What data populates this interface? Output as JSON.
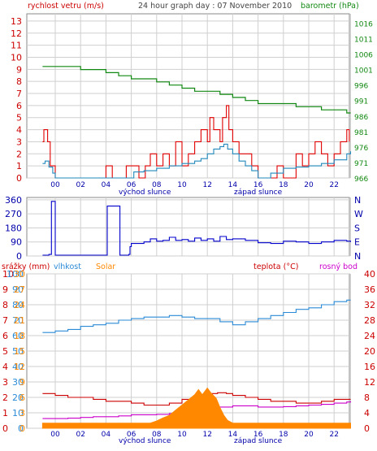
{
  "colors": {
    "wind": "#e00000",
    "gust": "#e00000",
    "wind_avg": "#2288bb",
    "pressure": "#118811",
    "direction": "#0000cc",
    "humidity": "#2a8ad6",
    "solar": "#ff8800",
    "temperature": "#cc0000",
    "dewpoint": "#cc00cc",
    "grid": "#cfcfcf",
    "frame": "#888888"
  },
  "header": {
    "wind_label": "rychlost vetru (m/s)",
    "title": "24 hour graph day : 07 November 2010",
    "pressure_label": "barometr (hPa)"
  },
  "legend": {
    "rain": "srážky (mm)",
    "humidity": "vlhkost",
    "solar": "Solar",
    "temperature": "teplota (°C)",
    "dewpoint": "rosný bod"
  },
  "time_axis": {
    "labels": [
      "00",
      "02",
      "04",
      "06",
      "08",
      "10",
      "12",
      "14",
      "16",
      "18",
      "20",
      "22"
    ],
    "sunrise_label": "východ slunce",
    "sunset_label": "západ slunce"
  },
  "chart_data": [
    {
      "type": "line",
      "title": "24 hour graph day : 07 November 2010",
      "y_left": {
        "label": "rychlost vetru (m/s)",
        "ticks": [
          0,
          1,
          2,
          3,
          4,
          5,
          6,
          7,
          8,
          9,
          10,
          11,
          12,
          13
        ],
        "lim": [
          0,
          13.6
        ]
      },
      "y_right": {
        "label": "barometr (hPa)",
        "ticks": [
          966,
          971,
          976,
          981,
          986,
          991,
          996,
          1001,
          1006,
          1011,
          1016
        ],
        "lim": [
          966,
          1019
        ]
      },
      "series": [
        {
          "key": "gust",
          "axis": "left",
          "points": [
            [
              -1,
              3
            ],
            [
              -0.9,
              4
            ],
            [
              -0.6,
              3
            ],
            [
              -0.4,
              1
            ],
            [
              0,
              0
            ],
            [
              4,
              0
            ],
            [
              4,
              1
            ],
            [
              4.5,
              0
            ],
            [
              5.5,
              0
            ],
            [
              5.6,
              1
            ],
            [
              6.5,
              1
            ],
            [
              6.6,
              0
            ],
            [
              7,
              0
            ],
            [
              7.1,
              1
            ],
            [
              7.5,
              2
            ],
            [
              8,
              1
            ],
            [
              8.5,
              2
            ],
            [
              9,
              1
            ],
            [
              9.5,
              3
            ],
            [
              10,
              1
            ],
            [
              10.5,
              2
            ],
            [
              11,
              3
            ],
            [
              11.5,
              4
            ],
            [
              12,
              3
            ],
            [
              12.2,
              5
            ],
            [
              12.5,
              4
            ],
            [
              13,
              3
            ],
            [
              13.2,
              5
            ],
            [
              13.5,
              6
            ],
            [
              13.7,
              4
            ],
            [
              14,
              3
            ],
            [
              14.5,
              2
            ],
            [
              15,
              2
            ],
            [
              15.5,
              1
            ],
            [
              16,
              0
            ],
            [
              17,
              0
            ],
            [
              17.5,
              1
            ],
            [
              18,
              0
            ],
            [
              19,
              2
            ],
            [
              19.5,
              1
            ],
            [
              20,
              2
            ],
            [
              20.5,
              3
            ],
            [
              21,
              2
            ],
            [
              21.5,
              1
            ],
            [
              22,
              2
            ],
            [
              22.5,
              3
            ],
            [
              23,
              4
            ],
            [
              23.2,
              3
            ]
          ]
        },
        {
          "key": "wind_avg",
          "axis": "left",
          "points": [
            [
              -1,
              1.2
            ],
            [
              -0.8,
              1.4
            ],
            [
              -0.5,
              0.9
            ],
            [
              -0.2,
              0.4
            ],
            [
              0,
              0
            ],
            [
              6,
              0
            ],
            [
              6.2,
              0.5
            ],
            [
              7,
              0.6
            ],
            [
              8,
              0.8
            ],
            [
              9,
              1.0
            ],
            [
              10,
              1.2
            ],
            [
              11,
              1.4
            ],
            [
              11.5,
              1.6
            ],
            [
              12,
              2.0
            ],
            [
              12.5,
              2.4
            ],
            [
              13,
              2.6
            ],
            [
              13.3,
              2.8
            ],
            [
              13.6,
              2.4
            ],
            [
              14,
              2.0
            ],
            [
              14.5,
              1.4
            ],
            [
              15,
              1.0
            ],
            [
              15.5,
              0.6
            ],
            [
              16,
              0
            ],
            [
              17,
              0.4
            ],
            [
              18,
              0.8
            ],
            [
              19,
              0.9
            ],
            [
              20,
              1.0
            ],
            [
              21,
              1.2
            ],
            [
              22,
              1.5
            ],
            [
              23,
              2.0
            ],
            [
              23.3,
              2.2
            ]
          ]
        },
        {
          "key": "pressure",
          "axis": "right",
          "points": [
            [
              -1,
              1002
            ],
            [
              0,
              1002
            ],
            [
              1,
              1002
            ],
            [
              2,
              1001
            ],
            [
              3,
              1001
            ],
            [
              4,
              1000
            ],
            [
              5,
              999
            ],
            [
              6,
              998
            ],
            [
              7,
              998
            ],
            [
              8,
              997
            ],
            [
              9,
              996
            ],
            [
              10,
              995
            ],
            [
              11,
              994
            ],
            [
              12,
              994
            ],
            [
              13,
              993
            ],
            [
              14,
              992
            ],
            [
              15,
              991
            ],
            [
              16,
              990
            ],
            [
              17,
              990
            ],
            [
              18,
              990
            ],
            [
              19,
              989
            ],
            [
              20,
              989
            ],
            [
              21,
              988
            ],
            [
              22,
              988
            ],
            [
              23,
              987
            ],
            [
              23.3,
              987
            ]
          ]
        }
      ]
    },
    {
      "type": "line",
      "y_left": {
        "label": "",
        "ticks": [
          0,
          90,
          180,
          270,
          360
        ],
        "lim": [
          0,
          375
        ]
      },
      "y_right": {
        "label": "",
        "ticks": [
          "N",
          "W",
          "S",
          "E",
          "N"
        ]
      },
      "series": [
        {
          "key": "direction",
          "axis": "left",
          "points": [
            [
              -1,
              5
            ],
            [
              -0.5,
              10
            ],
            [
              -0.3,
              350
            ],
            [
              0,
              5
            ],
            [
              0,
              5
            ],
            [
              4,
              5
            ],
            [
              4.1,
              320
            ],
            [
              5,
              320
            ],
            [
              5.1,
              5
            ],
            [
              5.8,
              10
            ],
            [
              5.9,
              60
            ],
            [
              6,
              80
            ],
            [
              7,
              90
            ],
            [
              7.5,
              110
            ],
            [
              8,
              95
            ],
            [
              8.5,
              100
            ],
            [
              9,
              120
            ],
            [
              9.5,
              100
            ],
            [
              10,
              105
            ],
            [
              10.5,
              95
            ],
            [
              11,
              115
            ],
            [
              11.5,
              100
            ],
            [
              12,
              110
            ],
            [
              12.5,
              95
            ],
            [
              13,
              125
            ],
            [
              13.5,
              105
            ],
            [
              14,
              110
            ],
            [
              15,
              100
            ],
            [
              16,
              85
            ],
            [
              17,
              80
            ],
            [
              18,
              95
            ],
            [
              19,
              90
            ],
            [
              20,
              80
            ],
            [
              21,
              90
            ],
            [
              22,
              100
            ],
            [
              23,
              95
            ],
            [
              23.3,
              90
            ]
          ]
        }
      ]
    },
    {
      "type": "line",
      "y_left_rain": {
        "label": "srážky (mm)",
        "ticks": [
          0,
          1,
          2,
          3,
          4,
          5,
          6,
          7,
          8,
          9,
          10
        ],
        "lim": [
          0,
          10
        ]
      },
      "y_left_hum": {
        "label": "vlhkost",
        "ticks": [
          0,
          10,
          20,
          30,
          40,
          50,
          60,
          70,
          80,
          90,
          100
        ],
        "lim": [
          0,
          100
        ]
      },
      "y_left_solar": {
        "label": "Solar",
        "ticks": [
          0,
          3,
          6,
          9,
          12,
          15,
          18,
          21,
          24,
          27,
          30
        ],
        "lim": [
          0,
          30
        ]
      },
      "y_right": {
        "label": "teplota (°C)",
        "ticks": [
          0,
          4,
          8,
          12,
          16,
          20,
          24,
          28,
          32,
          36,
          40
        ],
        "lim": [
          0,
          40
        ]
      },
      "series": [
        {
          "key": "humidity",
          "axis": "hum",
          "points": [
            [
              -1,
              62
            ],
            [
              0,
              63
            ],
            [
              1,
              64
            ],
            [
              2,
              66
            ],
            [
              3,
              67
            ],
            [
              4,
              68
            ],
            [
              5,
              70
            ],
            [
              6,
              71
            ],
            [
              7,
              72
            ],
            [
              8,
              72
            ],
            [
              9,
              73
            ],
            [
              10,
              72
            ],
            [
              11,
              71
            ],
            [
              12,
              71
            ],
            [
              13,
              69
            ],
            [
              14,
              67
            ],
            [
              15,
              69
            ],
            [
              16,
              71
            ],
            [
              17,
              73
            ],
            [
              18,
              75
            ],
            [
              19,
              77
            ],
            [
              20,
              78
            ],
            [
              21,
              80
            ],
            [
              22,
              82
            ],
            [
              23,
              83
            ],
            [
              23.3,
              83
            ]
          ]
        },
        {
          "key": "temperature",
          "axis": "temp",
          "points": [
            [
              -1,
              9
            ],
            [
              0,
              8.5
            ],
            [
              1,
              8
            ],
            [
              2,
              8
            ],
            [
              3,
              7.5
            ],
            [
              4,
              7
            ],
            [
              5,
              7
            ],
            [
              6,
              6.5
            ],
            [
              7,
              6
            ],
            [
              8,
              6
            ],
            [
              9,
              6.5
            ],
            [
              10,
              7.5
            ],
            [
              11,
              8.5
            ],
            [
              12,
              9
            ],
            [
              12.8,
              9.2
            ],
            [
              13.5,
              9
            ],
            [
              14,
              8.5
            ],
            [
              15,
              8
            ],
            [
              16,
              7.5
            ],
            [
              17,
              7
            ],
            [
              18,
              7
            ],
            [
              19,
              6.5
            ],
            [
              20,
              6.5
            ],
            [
              21,
              7
            ],
            [
              22,
              7.5
            ],
            [
              23,
              7.5
            ],
            [
              23.3,
              7.5
            ]
          ]
        },
        {
          "key": "dewpoint",
          "axis": "temp",
          "points": [
            [
              -1,
              2.5
            ],
            [
              0,
              2.5
            ],
            [
              1,
              2.6
            ],
            [
              2,
              2.8
            ],
            [
              3,
              3
            ],
            [
              4,
              3
            ],
            [
              5,
              3.2
            ],
            [
              6,
              3.5
            ],
            [
              7,
              3.5
            ],
            [
              8,
              3.6
            ],
            [
              9,
              3.8
            ],
            [
              10,
              4.5
            ],
            [
              11,
              5
            ],
            [
              12,
              5.5
            ],
            [
              13,
              5.5
            ],
            [
              14,
              5.8
            ],
            [
              15,
              5.8
            ],
            [
              16,
              5.5
            ],
            [
              17,
              5.5
            ],
            [
              18,
              5.6
            ],
            [
              19,
              5.8
            ],
            [
              20,
              6
            ],
            [
              21,
              6.2
            ],
            [
              22,
              6.5
            ],
            [
              23,
              6.8
            ],
            [
              23.3,
              7
            ]
          ]
        },
        {
          "key": "solar",
          "axis": "solar",
          "type": "area",
          "points": [
            [
              -1,
              1
            ],
            [
              7.5,
              1
            ],
            [
              8,
              1.4
            ],
            [
              8.5,
              2
            ],
            [
              9,
              2.5
            ],
            [
              9.5,
              3.5
            ],
            [
              10,
              4.5
            ],
            [
              10.5,
              5.5
            ],
            [
              11,
              6.5
            ],
            [
              11.3,
              7.5
            ],
            [
              11.6,
              6.5
            ],
            [
              12,
              7.8
            ],
            [
              12.3,
              6.8
            ],
            [
              12.7,
              5.8
            ],
            [
              13,
              4
            ],
            [
              13.3,
              2.5
            ],
            [
              13.6,
              1.5
            ],
            [
              14,
              1
            ],
            [
              23.3,
              1
            ]
          ]
        }
      ]
    }
  ]
}
